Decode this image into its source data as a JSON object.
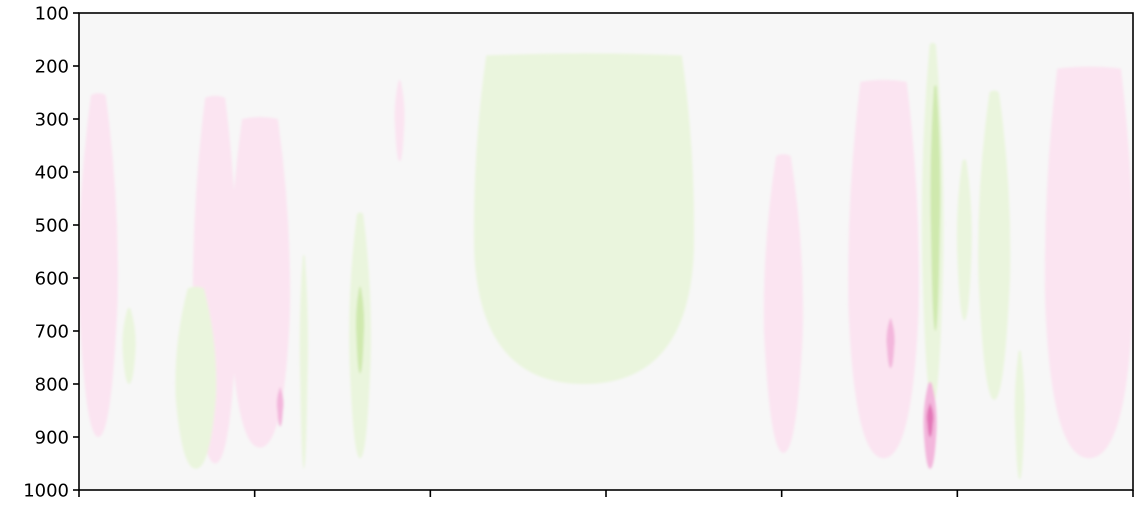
{
  "chart_data": {
    "type": "heatmap",
    "title": "",
    "xlabel": "",
    "ylabel": "",
    "ylim": [
      1000,
      100
    ],
    "y_ticks": [
      100,
      200,
      300,
      400,
      500,
      600,
      700,
      800,
      900,
      1000
    ],
    "y_tick_labels": [
      "100",
      "200",
      "300",
      "400",
      "500",
      "600",
      "700",
      "800",
      "900",
      "1000"
    ],
    "xlim": [
      0,
      6
    ],
    "x_ticks": [
      0,
      1,
      2,
      3,
      4,
      5,
      6
    ],
    "x_tick_labels": [
      "",
      "",
      "",
      "",
      "",
      "",
      ""
    ],
    "grid": false,
    "colors": {
      "background": "#f7f7f7",
      "positive_light": "#fbe4f1",
      "positive_mid": "#f3b6dc",
      "positive_strong": "#e377b8",
      "negative_light": "#eaf5dd",
      "negative_mid": "#cfe9ae",
      "negative_strong": "#a9d67c"
    },
    "regions": [
      {
        "sign": "positive",
        "level": 1,
        "x_range": [
          0.0,
          0.22
        ],
        "p_range": [
          255,
          900
        ]
      },
      {
        "sign": "positive",
        "level": 1,
        "x_range": [
          0.65,
          0.9
        ],
        "p_range": [
          260,
          950
        ]
      },
      {
        "sign": "positive",
        "level": 1,
        "x_range": [
          0.86,
          1.2
        ],
        "p_range": [
          300,
          920
        ]
      },
      {
        "sign": "positive",
        "level": 2,
        "x_range": [
          1.13,
          1.16
        ],
        "p_range": [
          810,
          880
        ]
      },
      {
        "sign": "positive",
        "level": 1,
        "x_range": [
          1.8,
          1.85
        ],
        "p_range": [
          230,
          380
        ]
      },
      {
        "sign": "negative",
        "level": 1,
        "x_range": [
          0.25,
          0.32
        ],
        "p_range": [
          660,
          800
        ]
      },
      {
        "sign": "negative",
        "level": 1,
        "x_range": [
          0.55,
          0.78
        ],
        "p_range": [
          620,
          960
        ]
      },
      {
        "sign": "negative",
        "level": 1,
        "x_range": [
          1.26,
          1.3
        ],
        "p_range": [
          560,
          960
        ]
      },
      {
        "sign": "negative",
        "level": 1,
        "x_range": [
          1.54,
          1.66
        ],
        "p_range": [
          480,
          940
        ]
      },
      {
        "sign": "negative",
        "level": 2,
        "x_range": [
          1.58,
          1.62
        ],
        "p_range": [
          620,
          780
        ]
      },
      {
        "sign": "negative",
        "level": 1,
        "x_range": [
          2.25,
          3.5
        ],
        "p_range": [
          180,
          800
        ]
      },
      {
        "sign": "positive",
        "level": 1,
        "x_range": [
          3.9,
          4.12
        ],
        "p_range": [
          370,
          930
        ]
      },
      {
        "sign": "positive",
        "level": 1,
        "x_range": [
          4.38,
          4.78
        ],
        "p_range": [
          230,
          940
        ]
      },
      {
        "sign": "positive",
        "level": 2,
        "x_range": [
          4.6,
          4.64
        ],
        "p_range": [
          680,
          770
        ]
      },
      {
        "sign": "negative",
        "level": 1,
        "x_range": [
          4.8,
          4.92
        ],
        "p_range": [
          160,
          840
        ]
      },
      {
        "sign": "negative",
        "level": 2,
        "x_range": [
          4.85,
          4.9
        ],
        "p_range": [
          240,
          700
        ]
      },
      {
        "sign": "positive",
        "level": 2,
        "x_range": [
          4.81,
          4.88
        ],
        "p_range": [
          800,
          960
        ]
      },
      {
        "sign": "positive",
        "level": 3,
        "x_range": [
          4.83,
          4.86
        ],
        "p_range": [
          840,
          900
        ]
      },
      {
        "sign": "negative",
        "level": 1,
        "x_range": [
          5.0,
          5.08
        ],
        "p_range": [
          380,
          680
        ]
      },
      {
        "sign": "negative",
        "level": 1,
        "x_range": [
          5.12,
          5.3
        ],
        "p_range": [
          250,
          830
        ]
      },
      {
        "sign": "negative",
        "level": 1,
        "x_range": [
          5.33,
          5.38
        ],
        "p_range": [
          740,
          980
        ]
      },
      {
        "sign": "positive",
        "level": 1,
        "x_range": [
          5.5,
          6.0
        ],
        "p_range": [
          205,
          940
        ]
      }
    ]
  }
}
